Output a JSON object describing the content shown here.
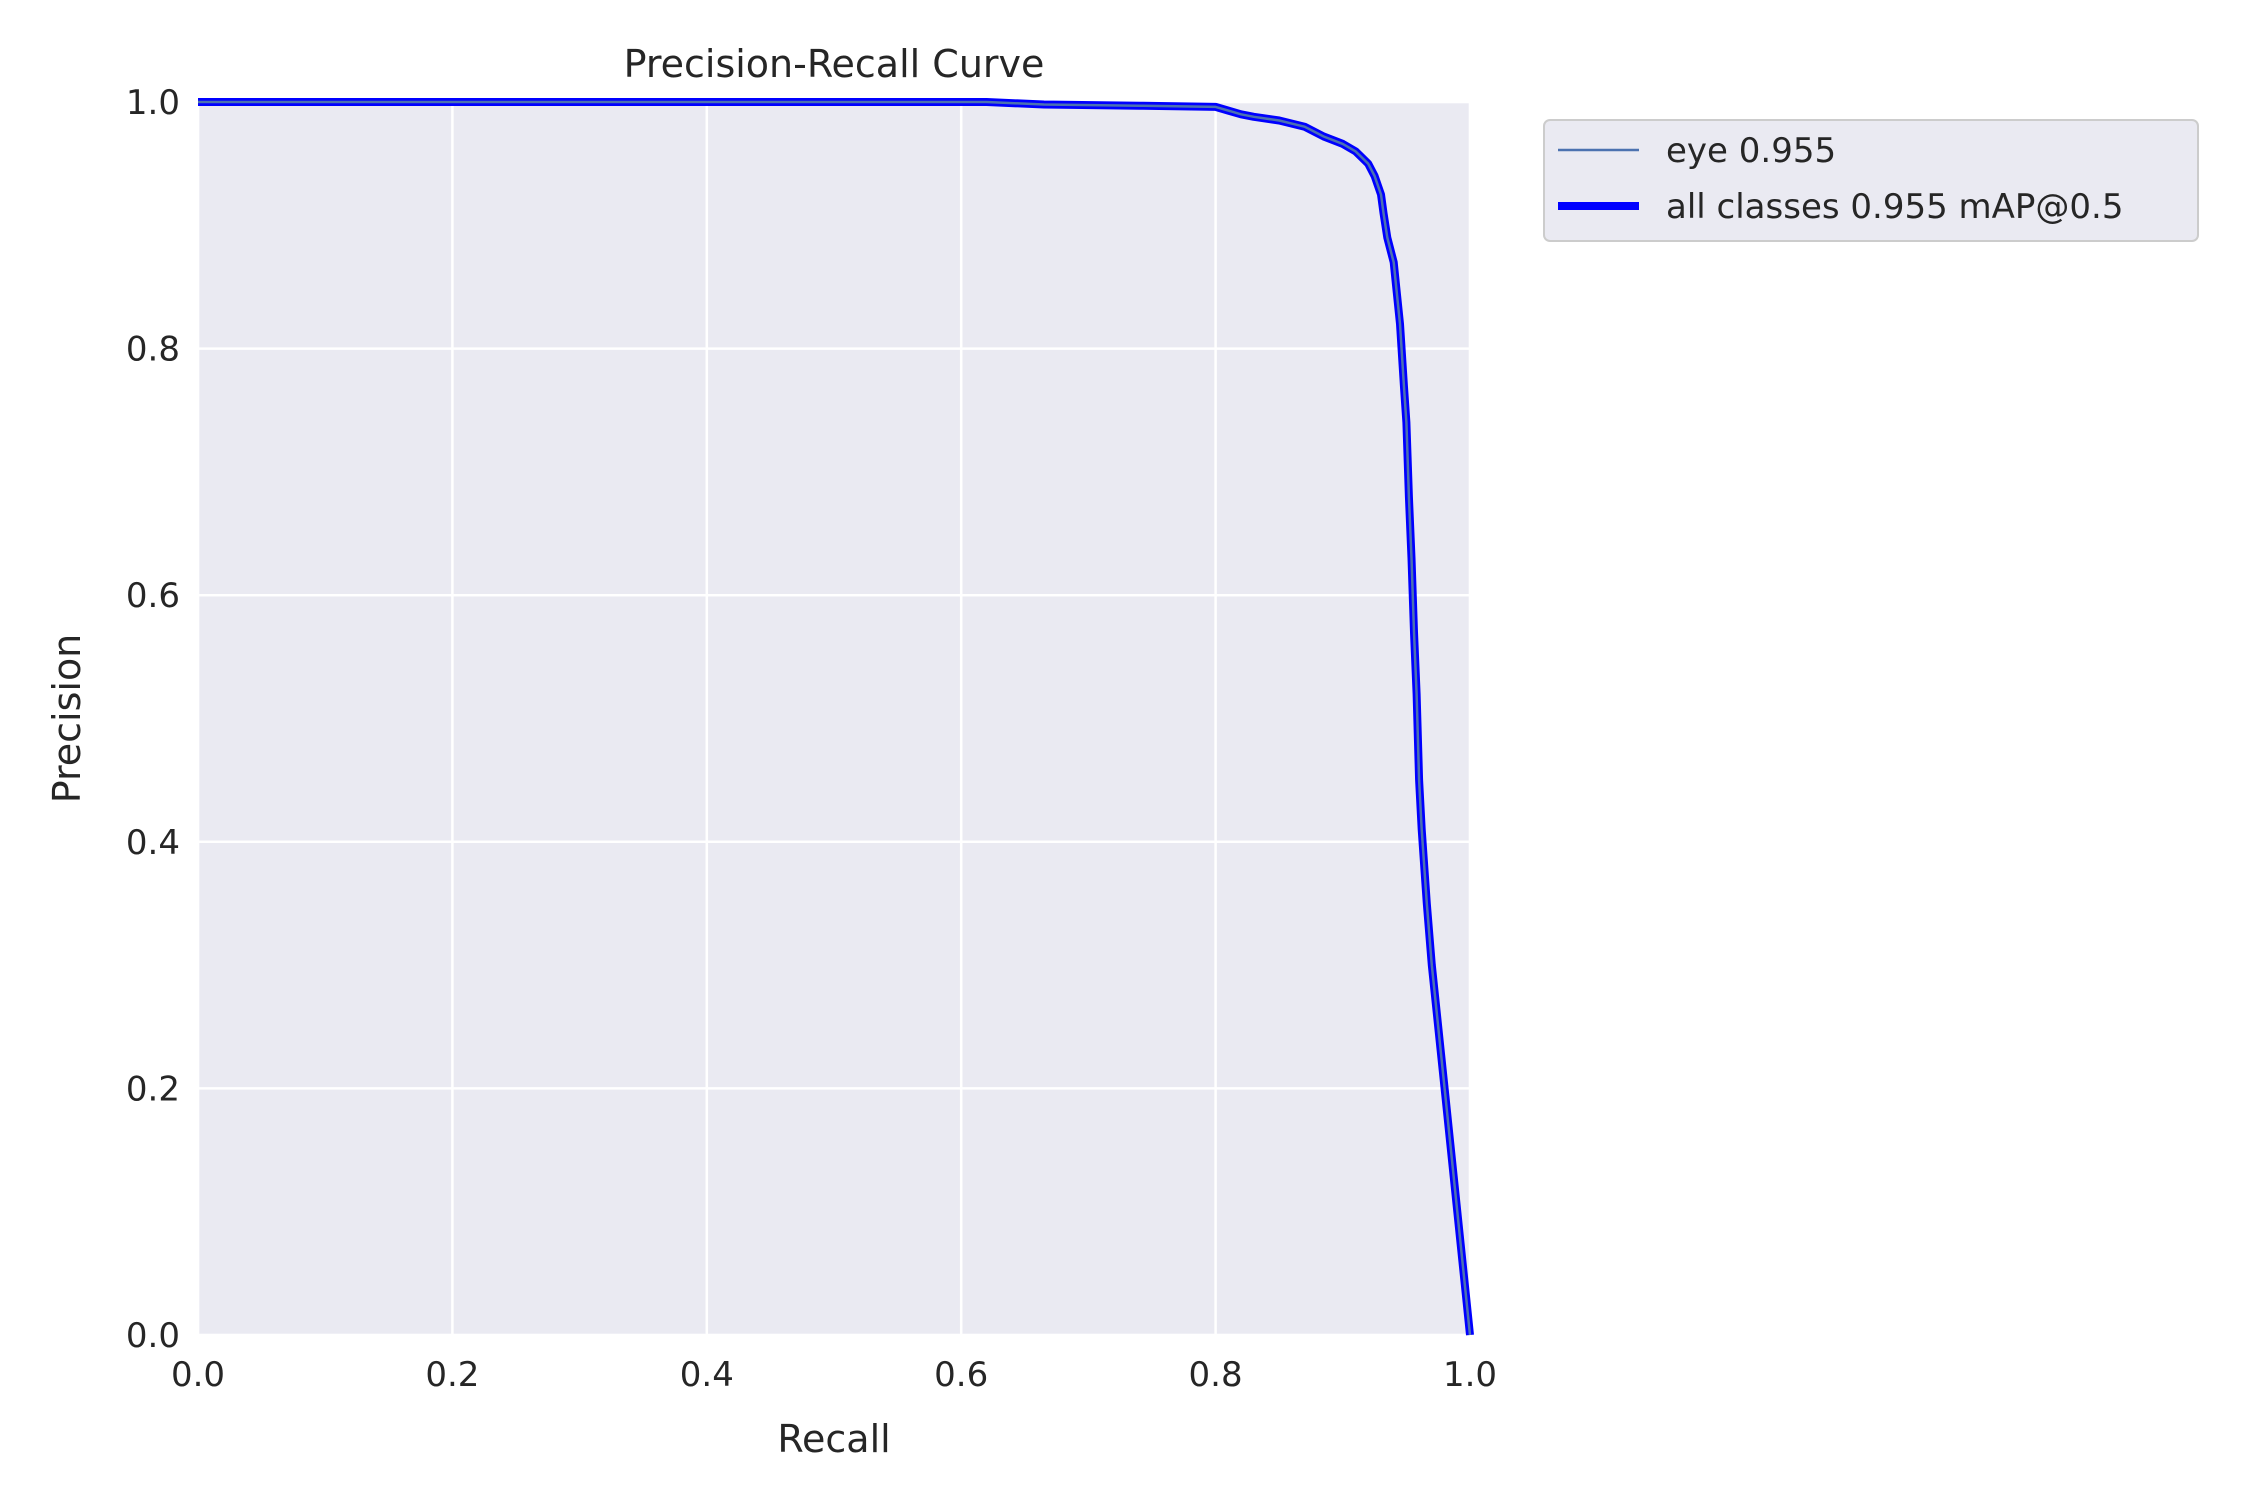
{
  "chart_data": {
    "type": "line",
    "title": "Precision-Recall Curve",
    "xlabel": "Recall",
    "ylabel": "Precision",
    "xlim": [
      0,
      1
    ],
    "ylim": [
      0,
      1
    ],
    "xticks": [
      "0.0",
      "0.2",
      "0.4",
      "0.6",
      "0.8",
      "1.0"
    ],
    "yticks": [
      "0.0",
      "0.2",
      "0.4",
      "0.6",
      "0.8",
      "1.0"
    ],
    "grid": true,
    "legend_position": "outside upper right",
    "background_color": "#eaeaf2",
    "series": [
      {
        "name": "eye 0.955",
        "color": "#4c72b0",
        "style": "thin",
        "x": [
          0.0,
          0.62,
          0.665,
          0.74,
          0.8,
          0.81,
          0.82,
          0.83,
          0.85,
          0.87,
          0.885,
          0.9,
          0.91,
          0.915,
          0.92,
          0.925,
          0.93,
          0.932,
          0.935,
          0.94,
          0.942,
          0.945,
          0.948,
          0.95,
          0.952,
          0.954,
          0.956,
          0.958,
          0.96,
          0.962,
          0.966,
          0.97,
          0.98,
          0.99,
          1.0
        ],
        "y": [
          1.0,
          1.0,
          0.998,
          0.997,
          0.996,
          0.993,
          0.99,
          0.988,
          0.985,
          0.98,
          0.972,
          0.966,
          0.96,
          0.955,
          0.95,
          0.94,
          0.925,
          0.91,
          0.89,
          0.87,
          0.85,
          0.82,
          0.77,
          0.74,
          0.68,
          0.63,
          0.57,
          0.52,
          0.45,
          0.41,
          0.35,
          0.3,
          0.2,
          0.1,
          0.0
        ]
      },
      {
        "name": "all classes 0.955 mAP@0.5",
        "color": "#0000ff",
        "style": "thick",
        "x": [
          0.0,
          0.62,
          0.665,
          0.74,
          0.8,
          0.81,
          0.82,
          0.83,
          0.85,
          0.87,
          0.885,
          0.9,
          0.91,
          0.915,
          0.92,
          0.925,
          0.93,
          0.932,
          0.935,
          0.94,
          0.942,
          0.945,
          0.948,
          0.95,
          0.952,
          0.954,
          0.956,
          0.958,
          0.96,
          0.962,
          0.966,
          0.97,
          0.98,
          0.99,
          1.0
        ],
        "y": [
          1.0,
          1.0,
          0.998,
          0.997,
          0.996,
          0.993,
          0.99,
          0.988,
          0.985,
          0.98,
          0.972,
          0.966,
          0.96,
          0.955,
          0.95,
          0.94,
          0.925,
          0.91,
          0.89,
          0.87,
          0.85,
          0.82,
          0.77,
          0.74,
          0.68,
          0.63,
          0.57,
          0.52,
          0.45,
          0.41,
          0.35,
          0.3,
          0.2,
          0.1,
          0.0
        ]
      }
    ]
  }
}
